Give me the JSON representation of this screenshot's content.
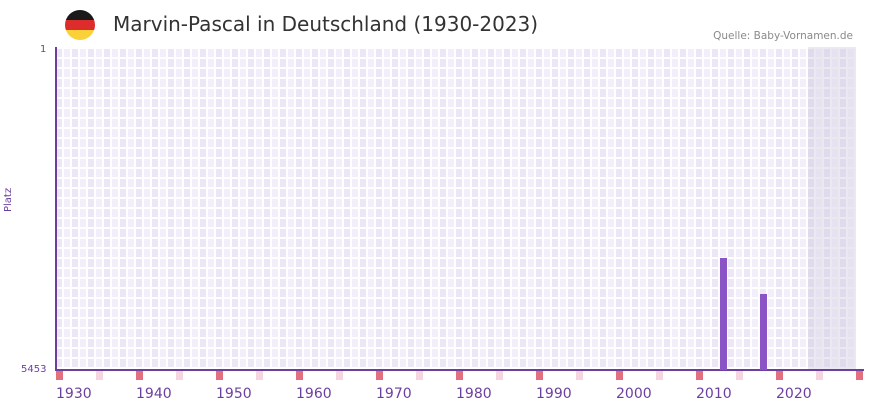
{
  "header": {
    "title": "Marvin-Pascal in Deutschland (1930-2023)",
    "source": "Quelle: Baby-Vornamen.de",
    "flag_icon": "germany-flag-icon",
    "flag_colors": [
      "#1a1a1a",
      "#dd2c2c",
      "#fbd13a"
    ]
  },
  "axis": {
    "y_top": "1",
    "y_bottom": "5453",
    "y_title": "Platz",
    "x_labels": [
      "1930",
      "1940",
      "1950",
      "1960",
      "1970",
      "1980",
      "1990",
      "2000",
      "2010",
      "2020"
    ]
  },
  "colors": {
    "bar": "#8b54c6",
    "axis": "#6b3fa0",
    "cell_a": "#ece6f7",
    "cell_b": "#f2eefa",
    "future_a": "#e0dbec",
    "future_b": "#e6e2ef",
    "decade_mark": "#e2707e",
    "half_decade_mark": "#f5d6de"
  },
  "chart_data": {
    "type": "bar",
    "title": "Marvin-Pascal in Deutschland (1930-2023)",
    "xlabel": "",
    "ylabel": "Platz",
    "y_inverted": true,
    "ylim": [
      1,
      5453
    ],
    "xlim": [
      1930,
      2029
    ],
    "x_tick_labels": [
      "1930",
      "1940",
      "1950",
      "1960",
      "1970",
      "1980",
      "1990",
      "2000",
      "2010",
      "2020"
    ],
    "categories": [
      "2013",
      "2018"
    ],
    "values": [
      3560,
      4170
    ],
    "grid": true,
    "legend": null,
    "annotation": "Quelle: Baby-Vornamen.de",
    "shaded_future_range": [
      2024,
      2029
    ]
  }
}
